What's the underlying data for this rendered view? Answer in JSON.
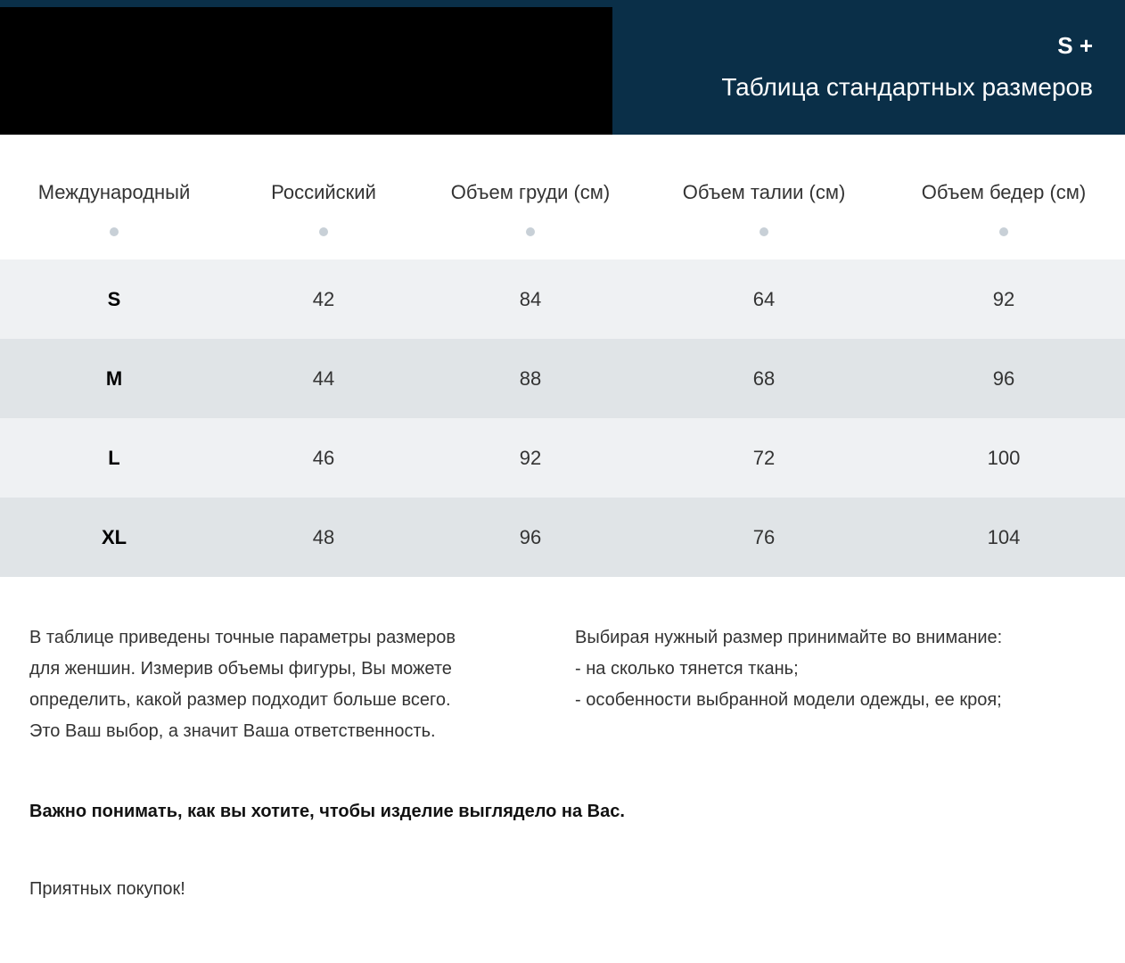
{
  "header": {
    "brand": "S +",
    "title": "Таблица стандартных размеров",
    "colors": {
      "band": "#0a2f48",
      "block": "#000000"
    }
  },
  "table": {
    "columns": [
      "Международный",
      "Российский",
      "Объем груди (см)",
      "Объем талии (см)",
      "Объем бедер (см)"
    ],
    "rows": [
      [
        "S",
        "42",
        "84",
        "64",
        "92"
      ],
      [
        "M",
        "44",
        "88",
        "68",
        "96"
      ],
      [
        "L",
        "46",
        "92",
        "72",
        "100"
      ],
      [
        "XL",
        "48",
        "96",
        "76",
        "104"
      ]
    ],
    "row_colors": [
      "#eff1f3",
      "#e0e4e7"
    ]
  },
  "notes": {
    "left": [
      "В таблице приведены точные параметры размеров",
      "для женшин. Измерив объемы фигуры, Вы можете",
      "определить, какой размер подходит больше всего.",
      "Это Ваш выбор, а значит Ваша ответственность."
    ],
    "right": [
      "Выбирая нужный размер принимайте во внимание:",
      "- на сколько тянется ткань;",
      "- особенности выбранной модели одежды, ее кроя;"
    ],
    "important": "Важно понимать, как вы хотите, чтобы изделие выглядело на Вас.",
    "closing": "Приятных покупок!"
  }
}
